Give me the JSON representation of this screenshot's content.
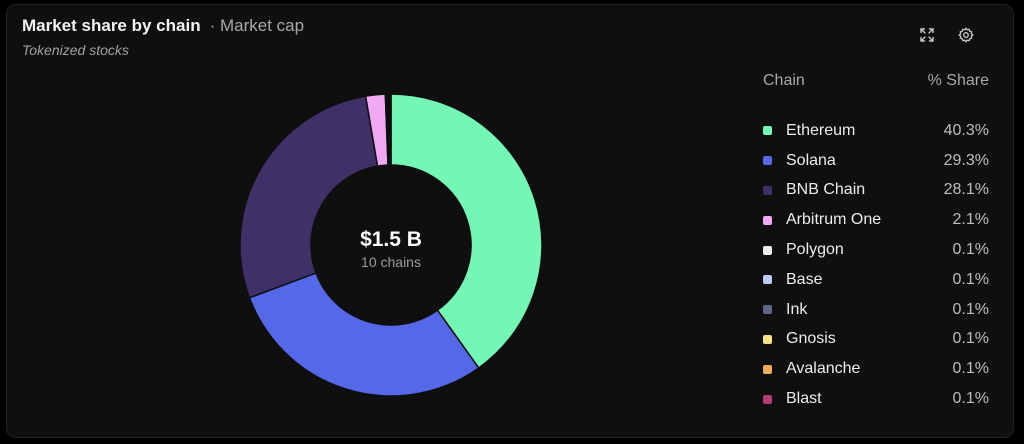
{
  "header": {
    "title": "Market share by chain",
    "metric": "· Market cap",
    "subtitle": "Tokenized stocks"
  },
  "icons": {
    "expand": "expand-icon",
    "settings": "gear-icon"
  },
  "center": {
    "value": "$1.5 B",
    "caption": "10 chains"
  },
  "legend": {
    "col_chain": "Chain",
    "col_share": "% Share"
  },
  "chart_data": {
    "type": "pie",
    "variant": "donut",
    "total_label": "$1.5 B",
    "count_label": "10 chains",
    "slices": [
      {
        "name": "Ethereum",
        "value": 40.3,
        "share": "40.3%",
        "color": "#74f7b5"
      },
      {
        "name": "Solana",
        "value": 29.3,
        "share": "29.3%",
        "color": "#5468e8"
      },
      {
        "name": "BNB Chain",
        "value": 28.1,
        "share": "28.1%",
        "color": "#3f3168"
      },
      {
        "name": "Arbitrum One",
        "value": 2.1,
        "share": "2.1%",
        "color": "#f1a8f5"
      },
      {
        "name": "Polygon",
        "value": 0.1,
        "share": "0.1%",
        "color": "#ececee"
      },
      {
        "name": "Base",
        "value": 0.1,
        "share": "0.1%",
        "color": "#bccaf5"
      },
      {
        "name": "Ink",
        "value": 0.1,
        "share": "0.1%",
        "color": "#5e6786"
      },
      {
        "name": "Gnosis",
        "value": 0.1,
        "share": "0.1%",
        "color": "#f6e283"
      },
      {
        "name": "Avalanche",
        "value": 0.1,
        "share": "0.1%",
        "color": "#f0ae5a"
      },
      {
        "name": "Blast",
        "value": 0.1,
        "share": "0.1%",
        "color": "#b33f72"
      }
    ]
  }
}
